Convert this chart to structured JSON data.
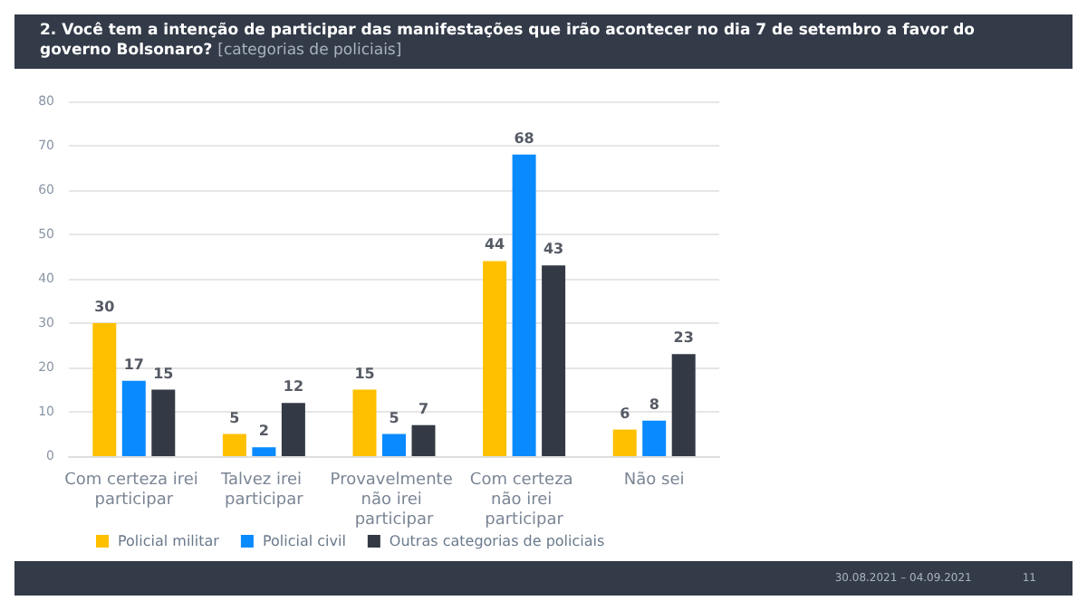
{
  "chart_data": {
    "type": "bar",
    "title": "2. Você tem a intenção de participar das manifestações que irão acontecer no dia 7 de setembro a favor do governo Bolsonaro?",
    "subtitle": "[categorias de policiais]",
    "categories": [
      "Com certeza irei participar",
      "Talvez irei participar",
      "Provavelmente não irei participar",
      "Com certeza não irei participar",
      "Não sei"
    ],
    "series": [
      {
        "name": "Policial militar",
        "color": "#ffc000",
        "values": [
          30,
          5,
          15,
          44,
          6
        ]
      },
      {
        "name": "Policial civil",
        "color": "#0a8aff",
        "values": [
          17,
          2,
          5,
          68,
          8
        ]
      },
      {
        "name": "Outras categorias de policiais",
        "color": "#333a45",
        "values": [
          15,
          12,
          7,
          43,
          23
        ]
      }
    ],
    "ylim": [
      0,
      80
    ],
    "yticks": [
      0,
      10,
      20,
      30,
      40,
      50,
      60,
      70,
      80
    ],
    "grid": "y",
    "legend": "bottom",
    "data_labels": true,
    "annotations": [
      "30.08.2021 – 04.09.2021",
      "11"
    ]
  }
}
